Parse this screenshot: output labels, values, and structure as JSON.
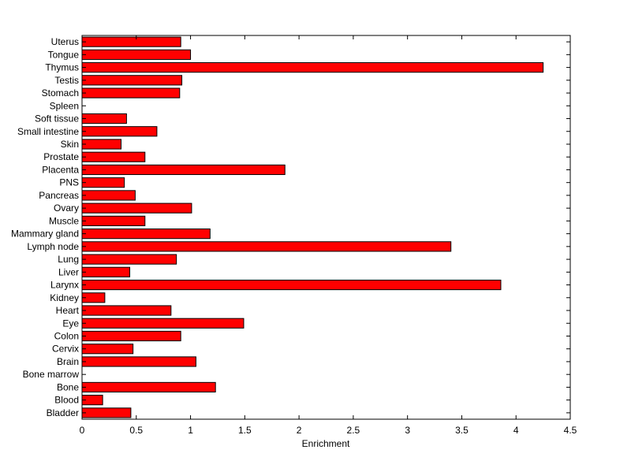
{
  "chart_data": {
    "type": "bar",
    "orientation": "horizontal",
    "title": "",
    "xlabel": "Enrichment",
    "ylabel": "",
    "xlim": [
      0,
      4.5
    ],
    "xticks": [
      "0",
      "0.5",
      "1",
      "1.5",
      "2",
      "2.5",
      "3",
      "3.5",
      "4",
      "4.5"
    ],
    "grid": false,
    "legend": "none",
    "bar_color": "#ff0000",
    "categories": [
      "Bladder",
      "Blood",
      "Bone",
      "Bone marrow",
      "Brain",
      "Cervix",
      "Colon",
      "Eye",
      "Heart",
      "Kidney",
      "Larynx",
      "Liver",
      "Lung",
      "Lymph node",
      "Mammary gland",
      "Muscle",
      "Ovary",
      "Pancreas",
      "PNS",
      "Placenta",
      "Prostate",
      "Skin",
      "Small intestine",
      "Soft tissue",
      "Spleen",
      "Stomach",
      "Testis",
      "Thymus",
      "Tongue",
      "Uterus"
    ],
    "values": [
      0.45,
      0.19,
      1.23,
      0.0,
      1.05,
      0.47,
      0.91,
      1.49,
      0.82,
      0.21,
      3.86,
      0.44,
      0.87,
      3.4,
      1.18,
      0.58,
      1.01,
      0.49,
      0.39,
      1.87,
      0.58,
      0.36,
      0.69,
      0.41,
      0.0,
      0.9,
      0.92,
      4.25,
      1.0,
      0.91
    ]
  }
}
